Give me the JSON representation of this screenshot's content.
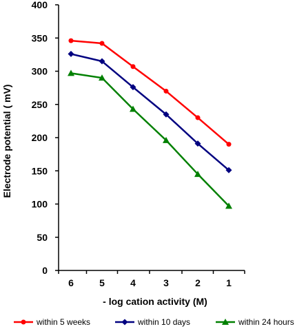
{
  "chart_data": {
    "type": "line",
    "title": "",
    "xlabel": "- log cation activity (M)",
    "ylabel": "Electrode potential ( mV)",
    "categories": [
      "6",
      "5",
      "4",
      "3",
      "2",
      "1"
    ],
    "ylim": [
      0,
      400
    ],
    "yticks": [
      0,
      50,
      100,
      150,
      200,
      250,
      300,
      350,
      400
    ],
    "grid": false,
    "legend_position": "bottom",
    "series": [
      {
        "name": "within 5 weeks",
        "color": "#ff0000",
        "marker": "circle",
        "values": [
          346,
          342,
          307,
          270,
          230,
          190
        ]
      },
      {
        "name": "within 10 days",
        "color": "#000080",
        "marker": "diamond",
        "values": [
          326,
          315,
          276,
          235,
          191,
          151
        ]
      },
      {
        "name": "within 24 hours",
        "color": "#008000",
        "marker": "triangle",
        "values": [
          297,
          290,
          243,
          196,
          145,
          97
        ]
      }
    ]
  }
}
